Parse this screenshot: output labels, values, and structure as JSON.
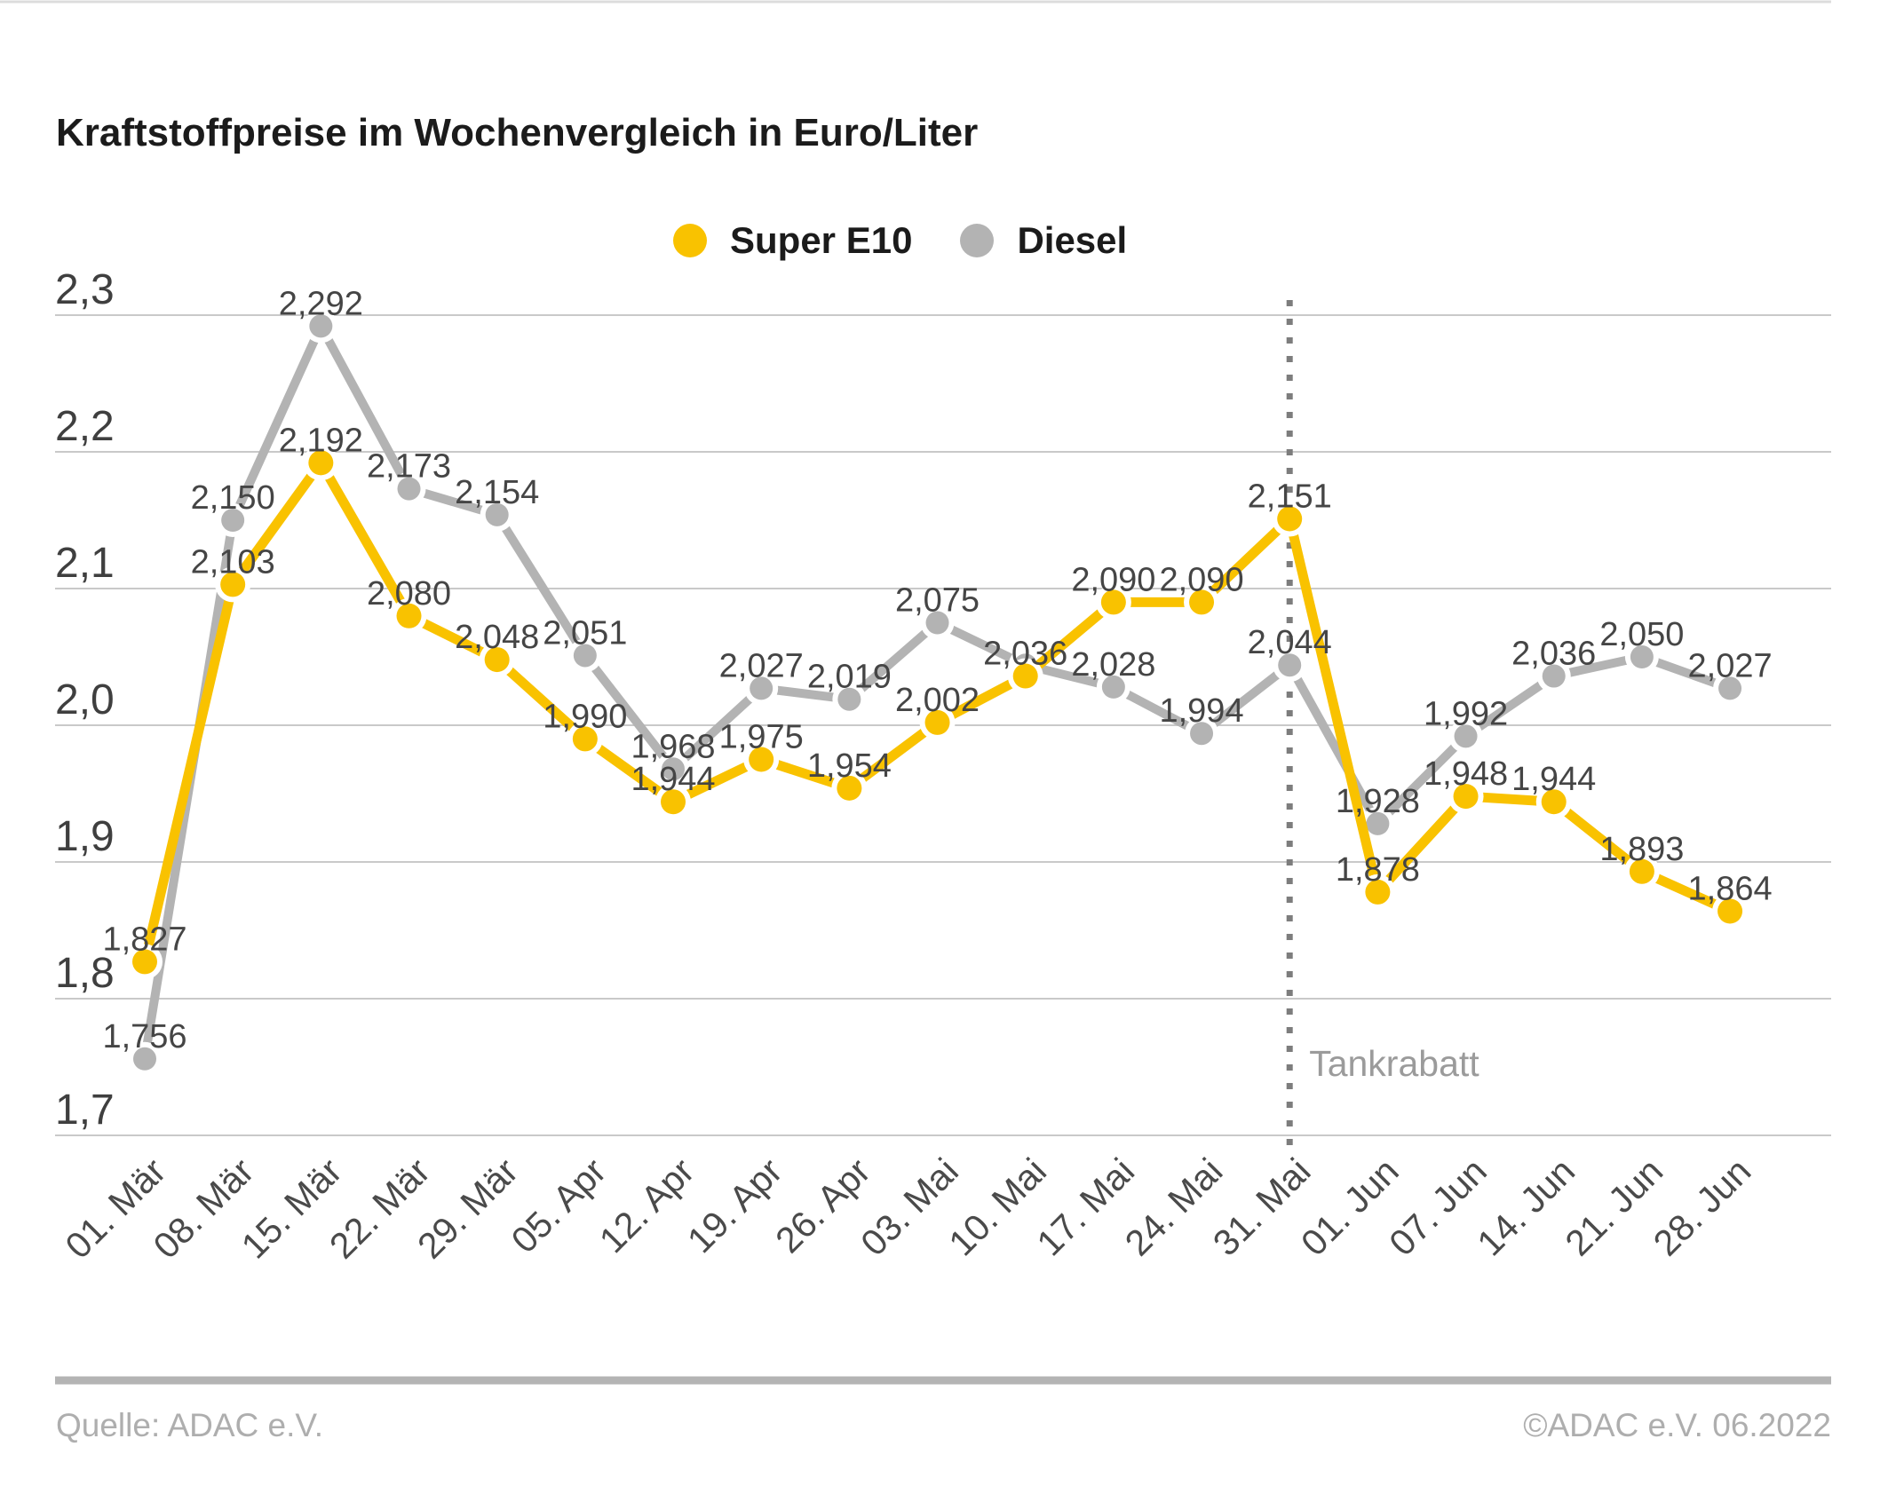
{
  "header": {
    "title": "Kraftstoffpreise im Wochenvergleich in Euro/Liter"
  },
  "legend": {
    "items": [
      {
        "label": "Super E10",
        "color": "#F9C200"
      },
      {
        "label": "Diesel",
        "color": "#B3B3B3"
      }
    ]
  },
  "chart_data": {
    "type": "line",
    "title": "Kraftstoffpreise im Wochenvergleich in Euro/Liter",
    "unit": "Euro/Liter",
    "categories": [
      "01. Mär",
      "08. Mär",
      "15. Mär",
      "22. Mär",
      "29. Mär",
      "05. Apr",
      "12. Apr",
      "19. Apr",
      "26. Apr",
      "03. Mai",
      "10. Mai",
      "17. Mai",
      "24. Mai",
      "31. Mai",
      "01. Jun",
      "07. Jun",
      "14. Jun",
      "21. Jun",
      "28. Jun"
    ],
    "series": [
      {
        "name": "Super E10",
        "color": "#F9C200",
        "values": [
          1.827,
          2.103,
          2.192,
          2.08,
          2.048,
          1.99,
          1.944,
          1.975,
          1.954,
          2.002,
          2.036,
          2.09,
          2.09,
          2.151,
          1.878,
          1.948,
          1.944,
          1.893,
          1.864
        ],
        "labels": [
          "1,827",
          "2,103",
          "2,192",
          "2,080",
          "2,048",
          "1,990",
          "1,944",
          "1,975",
          "1,954",
          "2,002",
          "2,036",
          "2,090",
          "2,090",
          "2,151",
          "1,878",
          "1,948",
          "1,944",
          "1,893",
          "1,864"
        ]
      },
      {
        "name": "Diesel",
        "color": "#B3B3B3",
        "values": [
          1.756,
          2.15,
          2.292,
          2.173,
          2.154,
          2.051,
          1.968,
          2.027,
          2.019,
          2.075,
          2.044,
          2.028,
          1.994,
          2.044,
          1.928,
          1.992,
          2.036,
          2.05,
          2.027
        ],
        "labels": [
          "1,756",
          "2,150",
          "2,292",
          "2,173",
          "2,154",
          "2,051",
          "1,968",
          "2,027",
          "2,019",
          "2,075",
          "",
          "2,028",
          "1,994",
          "2,044",
          "1,928",
          "1,992",
          "2,036",
          "2,050",
          "2,027"
        ]
      }
    ],
    "ylim": [
      1.7,
      2.3
    ],
    "yticks": [
      "1,7",
      "1,8",
      "1,9",
      "2,0",
      "2,1",
      "2,2",
      "2,3"
    ],
    "grid": "horizontal",
    "legend_position": "top-center",
    "x_label_rotation": -45,
    "annotation": {
      "text": "Tankrabatt",
      "category": "31. Mai"
    }
  },
  "footer": {
    "source": "Quelle: ADAC e.V.",
    "copyright": "©ADAC e.V.  06.2022"
  }
}
